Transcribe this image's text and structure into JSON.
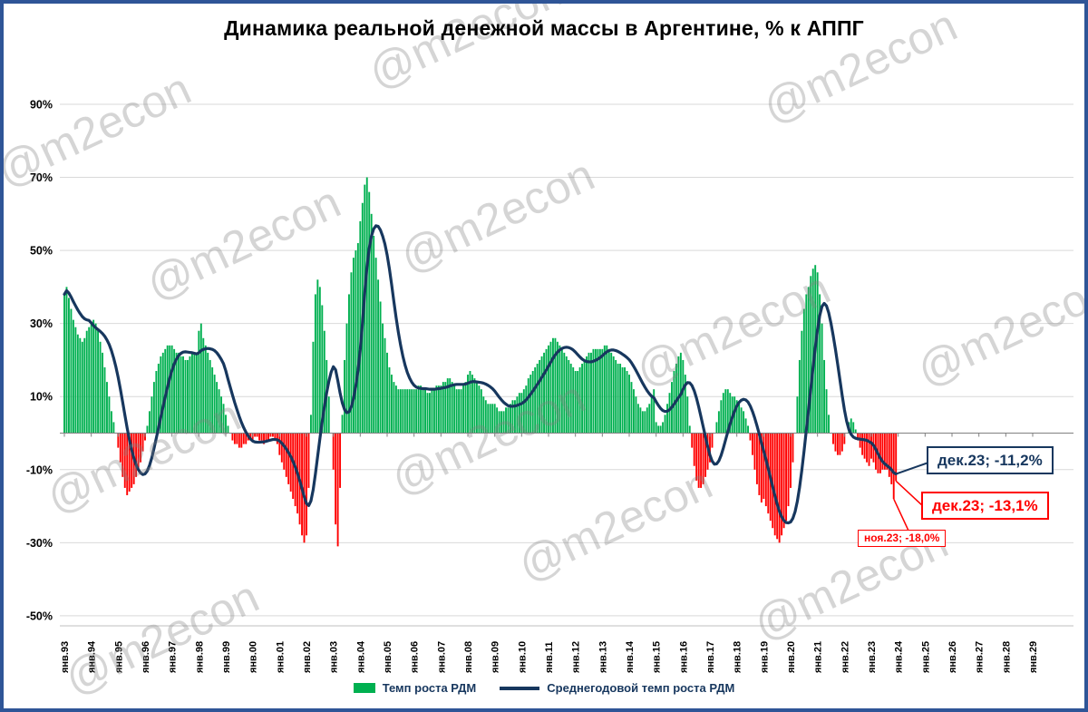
{
  "title": "Динамика реальной денежной массы в Аргентине, % к АППГ",
  "watermark": {
    "text": "@m2econ"
  },
  "annotations": {
    "line_dec23": {
      "text": "дек.23; -11,2%",
      "value": -11.2
    },
    "bar_dec23": {
      "text": "дек.23; -13,1%",
      "value": -13.1
    },
    "bar_nov23": {
      "text": "ноя.23; -18,0%",
      "value": -18.0
    }
  },
  "chart_data": {
    "type": "bar",
    "subtype": "monthly bars with annual-average line overlay",
    "title": "Динамика реальной денежной массы в Аргентине, % к АППГ",
    "xlabel": "",
    "ylabel": "",
    "ylim": [
      -50,
      95
    ],
    "grid": "horizontal",
    "legend_position": "bottom-center",
    "x_axis": {
      "start_month": "1993-01",
      "data_end_month": "2023-12",
      "axis_end_month": "2029-01",
      "labels": [
        "янв.93",
        "янв.94",
        "янв.95",
        "янв.96",
        "янв.97",
        "янв.98",
        "янв.99",
        "янв.00",
        "янв.01",
        "янв.02",
        "янв.03",
        "янв.04",
        "янв.05",
        "янв.06",
        "янв.07",
        "янв.08",
        "янв.09",
        "янв.10",
        "янв.11",
        "янв.12",
        "янв.13",
        "янв.14",
        "янв.15",
        "янв.16",
        "янв.17",
        "янв.18",
        "янв.19",
        "янв.20",
        "янв.21",
        "янв.22",
        "янв.23",
        "янв.24",
        "янв.25",
        "янв.26",
        "янв.27",
        "янв.28",
        "янв.29"
      ]
    },
    "y_axis": {
      "ticks": [
        90,
        70,
        50,
        30,
        10,
        -10,
        -30,
        -50
      ],
      "labels": [
        "90%",
        "70%",
        "50%",
        "30%",
        "10%",
        "-10%",
        "-30%",
        "-50%"
      ]
    },
    "series": [
      {
        "name": "Темп роста РДМ",
        "type": "bar",
        "unit": "% к АППГ, помесячно янв.1993 — дек.2023 (значения оценены по графику)",
        "values": [
          38,
          40,
          37,
          34,
          31,
          29,
          27,
          26,
          25,
          26,
          28,
          29,
          30,
          31,
          30,
          28,
          25,
          22,
          18,
          14,
          10,
          6,
          3,
          0,
          -4,
          -8,
          -12,
          -15,
          -17,
          -16,
          -15,
          -14,
          -12,
          -10,
          -8,
          -5,
          -2,
          2,
          6,
          10,
          14,
          17,
          19,
          21,
          22,
          23,
          24,
          24,
          24,
          23,
          22,
          22,
          21,
          21,
          20,
          20,
          21,
          22,
          22,
          22,
          28,
          30,
          26,
          24,
          22,
          20,
          18,
          16,
          14,
          12,
          10,
          8,
          5,
          2,
          0,
          -2,
          -3,
          -3,
          -4,
          -4,
          -3,
          -3,
          -2,
          -2,
          -2,
          -1,
          -1,
          -2,
          -2,
          -3,
          -2,
          -2,
          -1,
          -1,
          -2,
          -3,
          -6,
          -8,
          -10,
          -12,
          -14,
          -16,
          -18,
          -20,
          -22,
          -25,
          -28,
          -30,
          -28,
          -15,
          5,
          25,
          38,
          42,
          40,
          35,
          28,
          20,
          10,
          0,
          -10,
          -25,
          -31,
          -15,
          5,
          20,
          30,
          38,
          44,
          48,
          50,
          52,
          58,
          63,
          68,
          70,
          66,
          60,
          54,
          48,
          42,
          36,
          30,
          26,
          22,
          18,
          16,
          14,
          13,
          12,
          12,
          12,
          12,
          12,
          12,
          12,
          12,
          12,
          13,
          13,
          12,
          12,
          11,
          11,
          12,
          12,
          13,
          13,
          13,
          14,
          14,
          15,
          15,
          14,
          13,
          12,
          12,
          12,
          13,
          14,
          16,
          17,
          16,
          15,
          14,
          13,
          12,
          10,
          9,
          8,
          8,
          8,
          8,
          7,
          6,
          6,
          6,
          7,
          7,
          8,
          9,
          9,
          10,
          11,
          11,
          12,
          13,
          15,
          16,
          17,
          18,
          19,
          20,
          21,
          22,
          23,
          24,
          25,
          26,
          26,
          25,
          24,
          23,
          22,
          21,
          20,
          19,
          18,
          17,
          17,
          18,
          19,
          20,
          21,
          22,
          22,
          23,
          23,
          23,
          23,
          23,
          24,
          24,
          23,
          22,
          21,
          20,
          19,
          19,
          18,
          18,
          17,
          16,
          14,
          12,
          10,
          8,
          7,
          6,
          6,
          7,
          8,
          10,
          12,
          3,
          2,
          2,
          3,
          5,
          8,
          11,
          14,
          17,
          19,
          21,
          22,
          20,
          16,
          10,
          2,
          -4,
          -9,
          -13,
          -15,
          -15,
          -14,
          -12,
          -10,
          -8,
          -4,
          0,
          3,
          6,
          9,
          11,
          12,
          12,
          11,
          10,
          10,
          9,
          8,
          7,
          6,
          4,
          2,
          -2,
          -6,
          -10,
          -14,
          -17,
          -19,
          -18,
          -20,
          -22,
          -24,
          -26,
          -28,
          -29,
          -30,
          -28,
          -26,
          -24,
          -20,
          -15,
          -8,
          0,
          10,
          20,
          28,
          34,
          38,
          40,
          43,
          45,
          46,
          44,
          38,
          30,
          20,
          12,
          5,
          0,
          -3,
          -5,
          -6,
          -6,
          -5,
          -3,
          0,
          3,
          4,
          3,
          1,
          -2,
          -4,
          -6,
          -7,
          -8,
          -9,
          -7,
          -8,
          -10,
          -11,
          -11,
          -10,
          -10,
          -10,
          -12,
          -14,
          -18,
          -13.1
        ],
        "last_values": {
          "ноя.23": -18.0,
          "дек.23": -13.1
        }
      },
      {
        "name": "Среднегодовой темп роста РДМ",
        "type": "line",
        "derived": "trailing 12-month average of bar series",
        "end_value_pct": -11.2
      }
    ],
    "colors": {
      "bar_positive": "#00B050",
      "bar_negative": "#FF0000",
      "line": "#17375E",
      "grid": "#D9D9D9",
      "axis": "#808080",
      "frame_border": "#2F5597",
      "annotation_navy": "#17375E",
      "annotation_red": "#FF0000"
    }
  }
}
